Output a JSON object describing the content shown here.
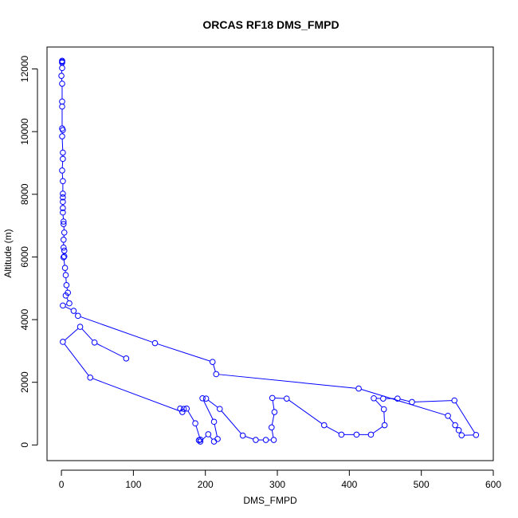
{
  "chart_data": {
    "type": "line",
    "title": "ORCAS RF18 DMS_FMPD",
    "xlabel": "DMS_FMPD",
    "ylabel": "Altitude (m)",
    "xlim": [
      -20,
      600
    ],
    "ylim": [
      -500,
      12700
    ],
    "xticks": [
      0,
      100,
      200,
      300,
      400,
      500,
      600
    ],
    "yticks": [
      0,
      2000,
      4000,
      6000,
      8000,
      10000,
      12000
    ],
    "series": [
      {
        "color": "#0000ff",
        "marker": "open-circle",
        "points": [
          [
            1,
            12230
          ],
          [
            1,
            12260
          ],
          [
            1,
            12200
          ],
          [
            1,
            12030
          ],
          [
            0,
            11780
          ],
          [
            1,
            11530
          ],
          [
            1,
            10960
          ],
          [
            1,
            10800
          ],
          [
            1,
            10100
          ],
          [
            2,
            10050
          ],
          [
            1,
            9850
          ],
          [
            2,
            9330
          ],
          [
            2,
            9130
          ],
          [
            1,
            8760
          ],
          [
            2,
            8420
          ],
          [
            2,
            8020
          ],
          [
            2,
            7900
          ],
          [
            2,
            7760
          ],
          [
            2,
            7560
          ],
          [
            2,
            7420
          ],
          [
            3,
            7130
          ],
          [
            3,
            7050
          ],
          [
            4,
            6780
          ],
          [
            3,
            6550
          ],
          [
            3,
            6300
          ],
          [
            4,
            6200
          ],
          [
            4,
            6020
          ],
          [
            3,
            5990
          ],
          [
            5,
            5650
          ],
          [
            6,
            5420
          ],
          [
            7,
            5100
          ],
          [
            9,
            4860
          ],
          [
            6,
            4770
          ],
          [
            11,
            4520
          ],
          [
            2,
            4450
          ],
          [
            17,
            4280
          ],
          [
            23,
            4120
          ],
          [
            130,
            3250
          ],
          [
            210,
            2650
          ],
          [
            215,
            2260
          ],
          [
            413,
            1800
          ],
          [
            537,
            930
          ],
          [
            547,
            630
          ],
          [
            552,
            470
          ],
          [
            556,
            310
          ],
          [
            576,
            320
          ],
          [
            546,
            1420
          ],
          [
            487,
            1370
          ],
          [
            467,
            1480
          ],
          [
            447,
            1480
          ],
          [
            434,
            1490
          ],
          [
            448,
            1140
          ],
          [
            449,
            630
          ],
          [
            430,
            330
          ],
          [
            410,
            330
          ],
          [
            389,
            330
          ],
          [
            365,
            630
          ],
          [
            313,
            1480
          ],
          [
            293,
            1500
          ],
          [
            296,
            1050
          ],
          [
            292,
            560
          ],
          [
            295,
            160
          ],
          [
            284,
            160
          ],
          [
            270,
            160
          ],
          [
            252,
            300
          ],
          [
            220,
            1150
          ],
          [
            201,
            1480
          ],
          [
            196,
            1490
          ],
          [
            212,
            740
          ],
          [
            217,
            190
          ],
          [
            212,
            110
          ],
          [
            204,
            340
          ],
          [
            193,
            110
          ],
          [
            191,
            150
          ],
          [
            193,
            170
          ],
          [
            186,
            690
          ],
          [
            174,
            1160
          ],
          [
            170,
            1150
          ],
          [
            165,
            1160
          ],
          [
            168,
            1050
          ],
          [
            40,
            2150
          ],
          [
            2,
            3290
          ],
          [
            26,
            3770
          ],
          [
            46,
            3270
          ],
          [
            90,
            2760
          ]
        ]
      }
    ]
  }
}
